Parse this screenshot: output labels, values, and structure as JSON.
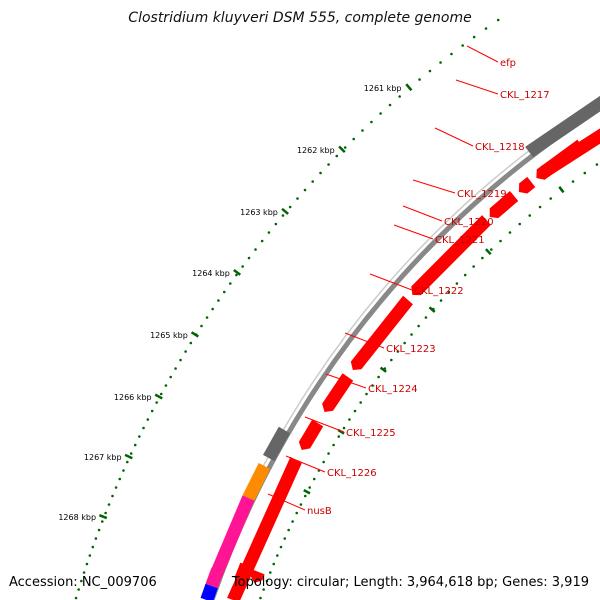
{
  "title": "Clostridium kluyveri DSM 555, complete genome",
  "accession_label": "Accession: NC_009706",
  "topology_label": "Topology: circular; Length: 3,964,618 bp; Genes: 3,919",
  "colors": {
    "gene_red": "#ff0000",
    "gene_pink_light": "#f08080",
    "gene_gray": "#666666",
    "gene_orange": "#ff8c00",
    "gene_magenta": "#ff1493",
    "gene_blue": "#0000ff",
    "gene_steelblue": "#4682b4",
    "backbone": "#888888",
    "tick_green": "#006400",
    "label_red": "#cc0000"
  },
  "kbp_ticks": [
    "1261 kbp",
    "1262 kbp",
    "1263 kbp",
    "1264 kbp",
    "1265 kbp",
    "1266 kbp",
    "1267 kbp",
    "1268 kbp"
  ],
  "genes": [
    {
      "name": "efp",
      "color": "gene_pink_light"
    },
    {
      "name": "CKL_1217",
      "color": "gene_red"
    },
    {
      "name": "CKL_1218",
      "color": "gene_gray"
    },
    {
      "name": "CKL_1219",
      "color": "gene_red"
    },
    {
      "name": "CKL_1220",
      "color": "gene_red"
    },
    {
      "name": "CKL_1221",
      "color": "gene_red"
    },
    {
      "name": "CKL_1222",
      "color": "gene_red"
    },
    {
      "name": "CKL_1223",
      "color": "gene_red"
    },
    {
      "name": "CKL_1224",
      "color": "gene_red"
    },
    {
      "name": "CKL_1225",
      "color": "gene_red"
    },
    {
      "name": "CKL_1226",
      "color": "gene_gray"
    },
    {
      "name": "nusB",
      "color": "gene_orange"
    }
  ]
}
